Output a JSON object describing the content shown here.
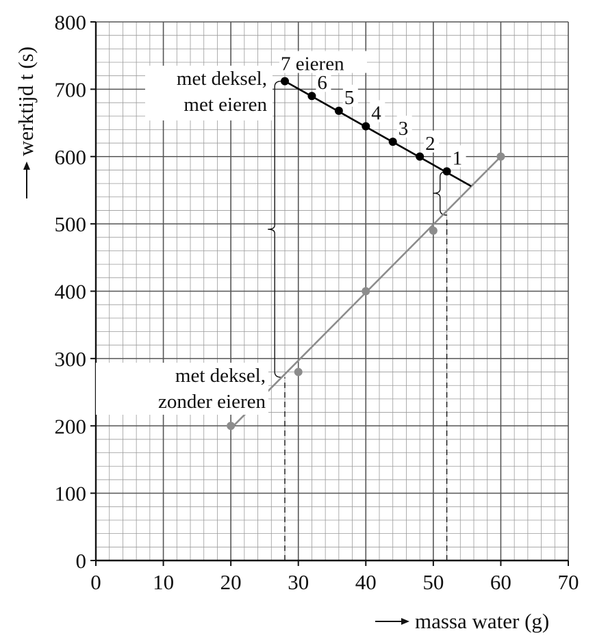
{
  "chart_data": {
    "type": "scatter",
    "xlabel": "massa water (g)",
    "ylabel": "werktijd t (s)",
    "xlim": [
      0,
      70
    ],
    "ylim": [
      0,
      800
    ],
    "x_ticks": [
      "0",
      "10",
      "20",
      "30",
      "40",
      "50",
      "60",
      "70"
    ],
    "y_ticks": [
      "0",
      "100",
      "200",
      "300",
      "400",
      "500",
      "600",
      "700",
      "800"
    ],
    "grid": true,
    "series": [
      {
        "name": "met deksel, zonder eieren",
        "color": "#8c8c8c",
        "points": [
          {
            "x": 20,
            "y": 200
          },
          {
            "x": 30,
            "y": 280
          },
          {
            "x": 40,
            "y": 400
          },
          {
            "x": 50,
            "y": 490
          },
          {
            "x": 60,
            "y": 600
          }
        ],
        "fit_line": [
          [
            20,
            196
          ],
          [
            60,
            600
          ]
        ]
      },
      {
        "name": "met deksel, met eieren",
        "color": "#000000",
        "points": [
          {
            "x": 28,
            "y": 712,
            "label": "7 eieren"
          },
          {
            "x": 32,
            "y": 690,
            "label": "6"
          },
          {
            "x": 36,
            "y": 668,
            "label": "5"
          },
          {
            "x": 40,
            "y": 645,
            "label": "4"
          },
          {
            "x": 44,
            "y": 622,
            "label": "3"
          },
          {
            "x": 48,
            "y": 600,
            "label": "2"
          },
          {
            "x": 52,
            "y": 578,
            "label": "1"
          }
        ],
        "fit_line": [
          [
            28,
            712
          ],
          [
            55.6,
            556
          ]
        ]
      }
    ],
    "annotations": {
      "top_line1": "met deksel,",
      "top_line2": "met eieren",
      "bottom_line1": "met deksel,",
      "bottom_line2": "zonder eieren"
    },
    "dashed_lines": [
      {
        "x": 28,
        "from_y": 0,
        "to_y": 272
      },
      {
        "x": 52,
        "from_y": 0,
        "to_y": 513
      }
    ],
    "braces": [
      {
        "x": 26.5,
        "y_from": 272,
        "y_to": 712
      },
      {
        "x": 51,
        "y_from": 513,
        "y_to": 578
      }
    ]
  }
}
